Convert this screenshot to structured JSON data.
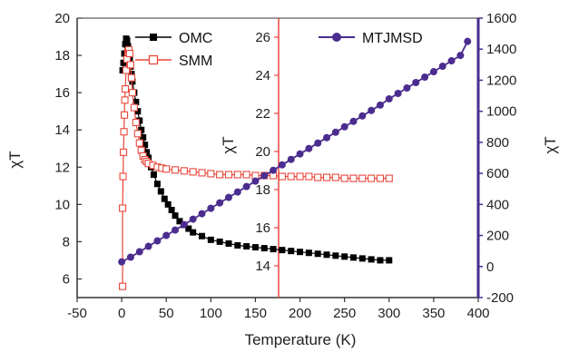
{
  "chart_data": {
    "type": "scatter",
    "xlabel": "Temperature (K)",
    "ylabel_left": "χT",
    "ylabel_middle": "χT",
    "ylabel_right": "χT",
    "xlim": [
      -50,
      400
    ],
    "x_ticks": [
      -50,
      0,
      50,
      100,
      150,
      200,
      250,
      300,
      350,
      400
    ],
    "left_axis": {
      "ylim": [
        5,
        20
      ],
      "ticks": [
        6,
        8,
        10,
        12,
        14,
        16,
        18,
        20
      ],
      "color": "#333333"
    },
    "middle_axis": {
      "ylim": [
        12.33,
        27.0
      ],
      "ticks": [
        14,
        16,
        18,
        20,
        22,
        24,
        26
      ],
      "color": "#e8473b"
    },
    "right_axis": {
      "ylim": [
        -200,
        1600
      ],
      "ticks": [
        -200,
        0,
        200,
        400,
        600,
        800,
        1000,
        1200,
        1400,
        1600
      ],
      "color": "#4b2c8f"
    },
    "grid": false,
    "legend": {
      "placement": "top"
    },
    "series": [
      {
        "name": "OMC",
        "axis": "left",
        "color": "#000000",
        "marker": "filled-square",
        "x": [
          1,
          2,
          3,
          4,
          5,
          6,
          7,
          8,
          9,
          10,
          11,
          12,
          14,
          16,
          18,
          20,
          22,
          24,
          26,
          28,
          30,
          33,
          36,
          40,
          44,
          48,
          52,
          56,
          60,
          65,
          70,
          75,
          80,
          90,
          100,
          110,
          120,
          130,
          140,
          150,
          160,
          170,
          180,
          190,
          200,
          210,
          220,
          230,
          240,
          250,
          260,
          270,
          280,
          290,
          300
        ],
        "y": [
          17.2,
          17.6,
          18.1,
          18.6,
          18.9,
          18.8,
          18.5,
          18.2,
          17.8,
          17.4,
          17.0,
          16.6,
          16.0,
          15.5,
          15.0,
          14.5,
          14.0,
          13.6,
          13.2,
          12.8,
          12.5,
          12.0,
          11.6,
          11.1,
          10.7,
          10.3,
          10.0,
          9.7,
          9.4,
          9.1,
          8.9,
          8.7,
          8.5,
          8.3,
          8.1,
          8.0,
          7.9,
          7.8,
          7.75,
          7.7,
          7.65,
          7.6,
          7.55,
          7.5,
          7.45,
          7.4,
          7.35,
          7.3,
          7.25,
          7.2,
          7.15,
          7.1,
          7.05,
          7.0,
          7.0
        ]
      },
      {
        "name": "SMM",
        "axis": "left",
        "color": "#e8473b",
        "marker": "open-square",
        "x": [
          1,
          1,
          1.5,
          2,
          2.5,
          3,
          3.5,
          4,
          5,
          6,
          7,
          8,
          9,
          10,
          11,
          12,
          14,
          16,
          18,
          20,
          22,
          24,
          26,
          28,
          30,
          35,
          40,
          45,
          50,
          60,
          70,
          80,
          90,
          100,
          110,
          120,
          130,
          140,
          150,
          160,
          170,
          180,
          190,
          200,
          210,
          220,
          230,
          240,
          250,
          260,
          270,
          280,
          290,
          300
        ],
        "y": [
          5.6,
          9.8,
          11.5,
          12.8,
          13.9,
          14.8,
          15.6,
          16.2,
          17.2,
          17.8,
          18.2,
          18.3,
          18.1,
          17.5,
          16.8,
          16.0,
          15.2,
          14.4,
          13.8,
          13.3,
          12.9,
          12.6,
          12.4,
          12.3,
          12.2,
          12.1,
          12.0,
          11.95,
          11.9,
          11.85,
          11.8,
          11.75,
          11.7,
          11.65,
          11.6,
          11.6,
          11.6,
          11.6,
          11.55,
          11.55,
          11.55,
          11.5,
          11.5,
          11.5,
          11.5,
          11.45,
          11.45,
          11.45,
          11.4,
          11.4,
          11.4,
          11.4,
          11.4,
          11.4
        ]
      },
      {
        "name": "MTJMSD",
        "axis": "right",
        "color": "#4b2c8f",
        "marker": "filled-circle",
        "x": [
          0,
          10,
          20,
          30,
          40,
          50,
          60,
          70,
          80,
          90,
          100,
          110,
          120,
          130,
          140,
          150,
          160,
          170,
          180,
          190,
          200,
          210,
          220,
          230,
          240,
          250,
          260,
          270,
          280,
          290,
          300,
          310,
          320,
          330,
          340,
          350,
          360,
          370,
          380,
          388
        ],
        "y": [
          30,
          60,
          95,
          130,
          165,
          200,
          235,
          270,
          305,
          340,
          375,
          410,
          445,
          480,
          515,
          550,
          585,
          620,
          655,
          690,
          725,
          760,
          795,
          830,
          865,
          900,
          935,
          970,
          1005,
          1040,
          1080,
          1115,
          1150,
          1185,
          1220,
          1255,
          1290,
          1325,
          1360,
          1450
        ]
      }
    ]
  }
}
